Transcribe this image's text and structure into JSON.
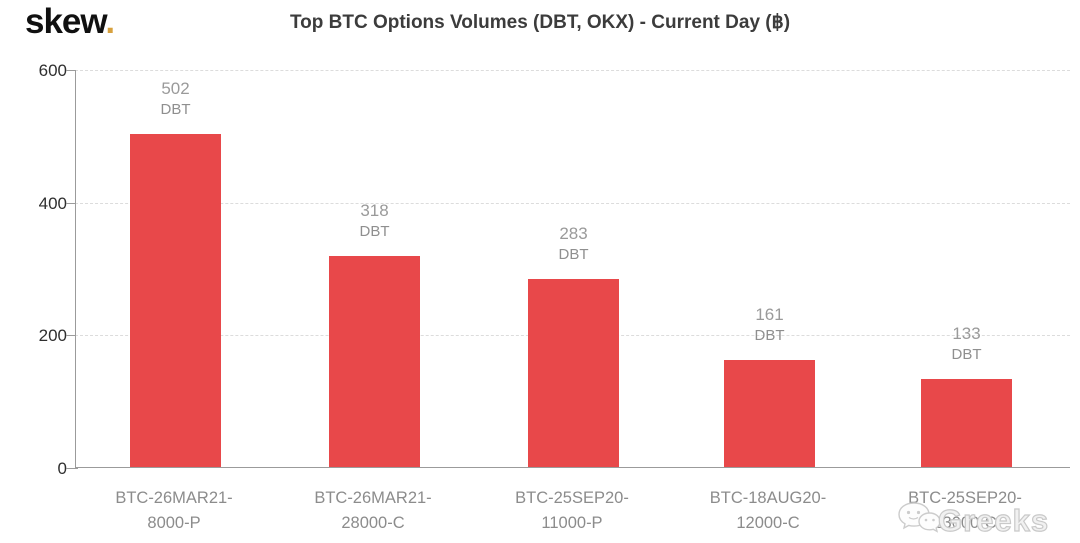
{
  "brand": {
    "logo_text": "skew",
    "logo_dot": "."
  },
  "title": "Top BTC Options Volumes (DBT, OKX) - Current Day (฿)",
  "chart_data": {
    "type": "bar",
    "title": "Top BTC Options Volumes (DBT, OKX) - Current Day (฿)",
    "categories": [
      "BTC-26MAR21-8000-P",
      "BTC-26MAR21-28000-C",
      "BTC-25SEP20-11000-P",
      "BTC-18AUG20-12000-C",
      "BTC-25SEP20-13000-C"
    ],
    "values": [
      502,
      318,
      283,
      161,
      133
    ],
    "bar_annotation": "DBT",
    "bar_color": "#e8484a",
    "xlabel": "",
    "ylabel": "",
    "ylim": [
      0,
      600
    ],
    "yticks": [
      0,
      200,
      400,
      600
    ],
    "grid": "horizontal-dashed",
    "legend": "none"
  },
  "y_axis": {
    "tick_labels": [
      "600",
      "400",
      "200",
      "0"
    ]
  },
  "bars": [
    {
      "value": "502",
      "tag": "DBT",
      "line1": "BTC-26MAR21-",
      "line2": "8000-P"
    },
    {
      "value": "318",
      "tag": "DBT",
      "line1": "BTC-26MAR21-",
      "line2": "28000-C"
    },
    {
      "value": "283",
      "tag": "DBT",
      "line1": "BTC-25SEP20-",
      "line2": "11000-P"
    },
    {
      "value": "161",
      "tag": "DBT",
      "line1": "BTC-18AUG20-",
      "line2": "12000-C"
    },
    {
      "value": "133",
      "tag": "DBT",
      "line1": "BTC-25SEP20-",
      "line2": "13000-C"
    }
  ],
  "watermark": {
    "text": "Greeks",
    "icon": "wechat-icon"
  }
}
